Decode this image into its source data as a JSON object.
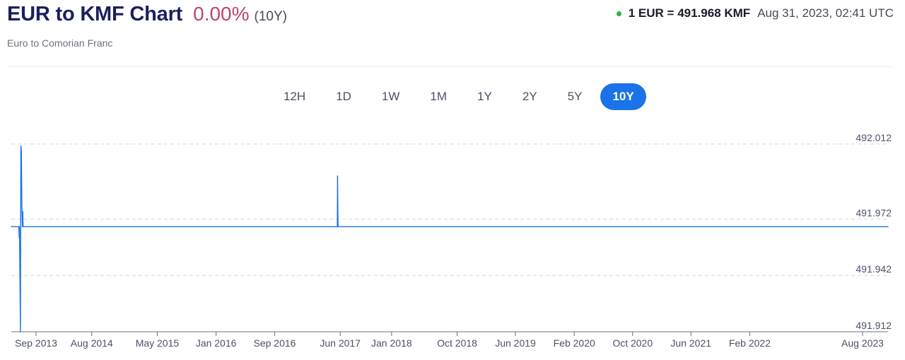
{
  "header": {
    "title": "EUR to KMF Chart",
    "change": "0.00%",
    "period": "(10Y)",
    "subtitle": "Euro to Comorian Franc"
  },
  "rate": {
    "text": "1 EUR = 491.968 KMF",
    "timestamp": "Aug 31, 2023, 02:41 UTC"
  },
  "period_buttons": [
    "12H",
    "1D",
    "1W",
    "1M",
    "1Y",
    "2Y",
    "5Y",
    "10Y"
  ],
  "active_period": "10Y",
  "colors": {
    "line": "#1a73e8",
    "active_button": "#1a73e8",
    "change": "#c0446a",
    "live_dot": "#2bb24c"
  },
  "chart_data": {
    "type": "line",
    "title": "",
    "xlabel": "",
    "ylabel": "",
    "y_ticks": [
      492.012,
      491.972,
      491.942,
      491.912
    ],
    "ylim": [
      491.912,
      492.012
    ],
    "x_ticks": [
      "Sep 2013",
      "Aug 2014",
      "May 2015",
      "Jan 2016",
      "Sep 2016",
      "Jun 2017",
      "Jan 2018",
      "Oct 2018",
      "Jun 2019",
      "Feb 2020",
      "Oct 2020",
      "Jun 2021",
      "Feb 2022",
      "Aug 2023"
    ],
    "xlim": [
      "2013-08-31",
      "2023-08-31"
    ],
    "grid": "horizontal dashed",
    "series": [
      {
        "x": [
          "2013-08-31",
          "2013-10-01",
          "2013-10-03",
          "2013-10-04",
          "2013-10-08",
          "2013-10-09",
          "2013-10-10",
          "2013-10-12",
          "2013-10-14",
          "2013-10-16",
          "2013-10-18",
          "2013-10-19",
          "2013-10-21",
          "2013-10-23",
          "2013-10-25",
          "2017-05-20",
          "2017-05-21",
          "2017-05-23",
          "2023-08-31"
        ],
        "y": [
          491.968,
          491.968,
          491.962,
          491.968,
          491.912,
          491.968,
          492.011,
          492.008,
          491.978,
          491.968,
          491.976,
          491.968,
          491.968,
          491.968,
          491.968,
          491.968,
          491.995,
          491.968,
          491.968
        ]
      }
    ]
  }
}
